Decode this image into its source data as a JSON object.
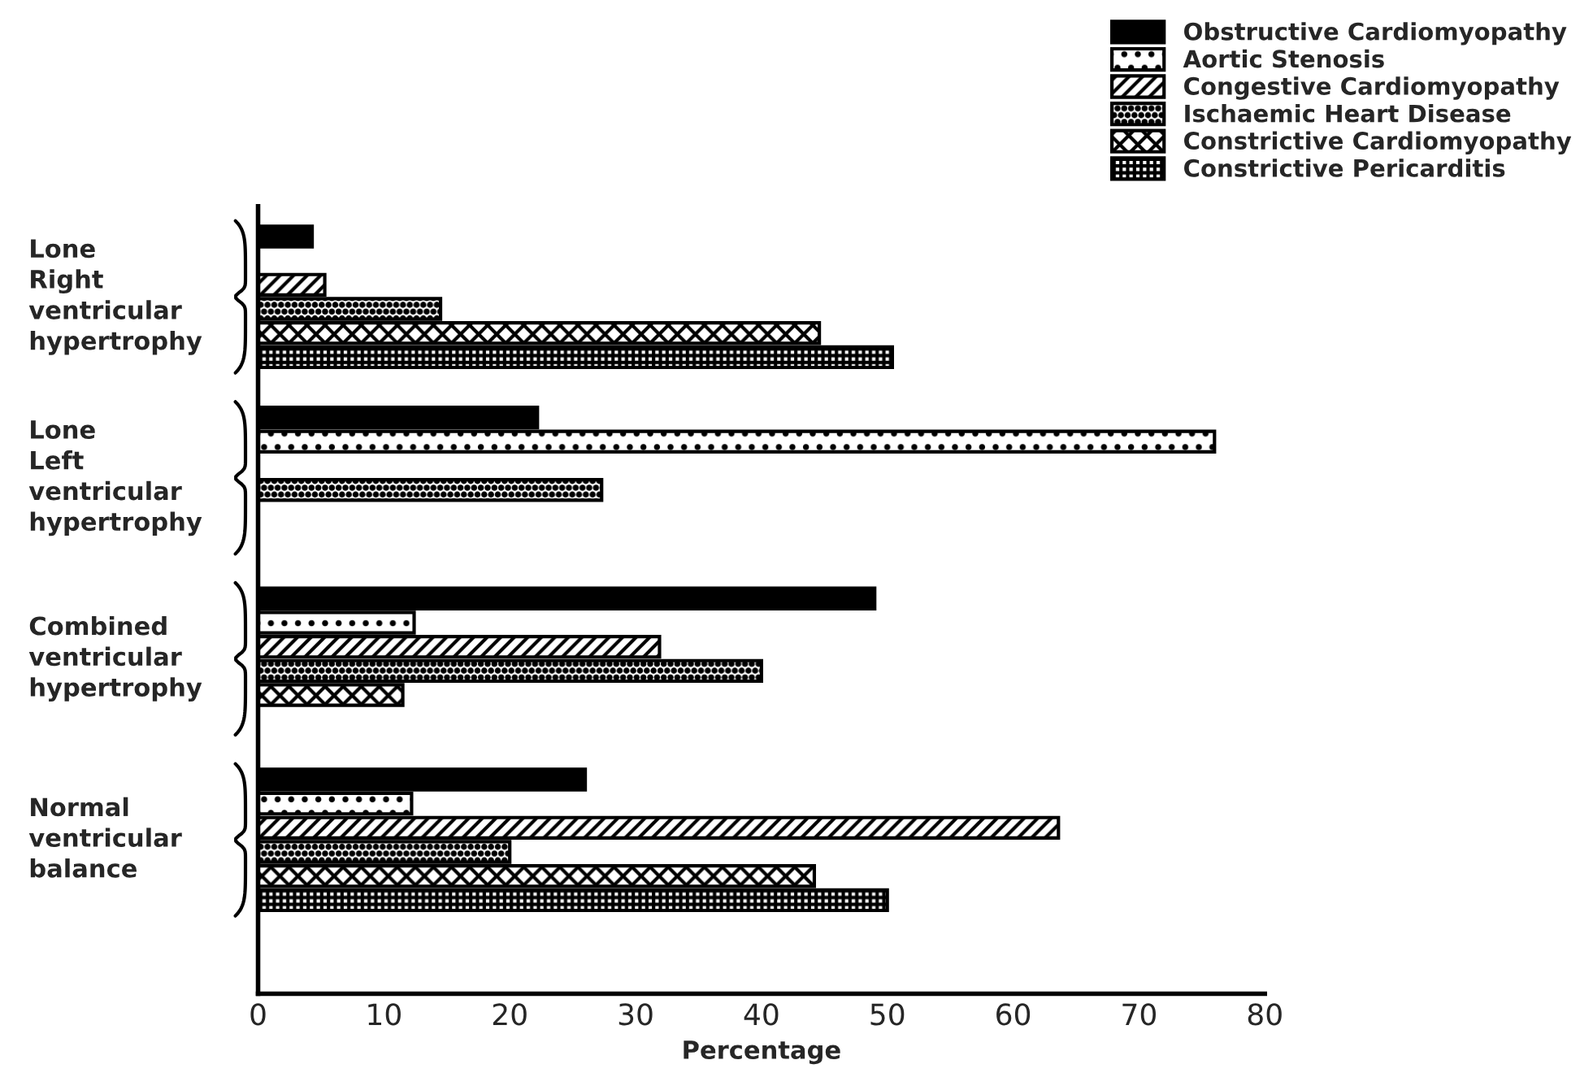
{
  "chart_data": {
    "type": "bar",
    "orientation": "horizontal",
    "xlabel": "Percentage",
    "categories": [
      "Lone\nRight\nventricular\nhypertrophy",
      "Lone\nLeft\nventricular\nhypertrophy",
      "Combined\nventricular\nhypertrophy",
      "Normal\nventricular\nbalance"
    ],
    "series": [
      {
        "name": "Obstructive Cardiomyopathy",
        "color": "#000000",
        "values": [
          4.3,
          22.2,
          49,
          26
        ]
      },
      {
        "name": "Aortic Stenosis",
        "color": "#000000",
        "values": [
          null,
          76,
          12.4,
          12.2
        ]
      },
      {
        "name": "Congestive Cardiomyopathy",
        "color": "#000000",
        "values": [
          5.3,
          null,
          31.9,
          63.6
        ]
      },
      {
        "name": "Ischaemic Heart Disease",
        "color": "#000000",
        "values": [
          14.5,
          27.3,
          40,
          20
        ]
      },
      {
        "name": "Constrictive Cardiomyopathy",
        "color": "#000000",
        "values": [
          44.6,
          null,
          11.5,
          44.2
        ]
      },
      {
        "name": "Constrictive Pericarditis",
        "color": "#000000",
        "values": [
          50.4,
          null,
          null,
          50
        ]
      }
    ],
    "xlim": [
      0,
      80
    ],
    "xticks": [
      0,
      10,
      20,
      30,
      40,
      50,
      60,
      70,
      80
    ],
    "grid": false,
    "legend": "top right"
  }
}
